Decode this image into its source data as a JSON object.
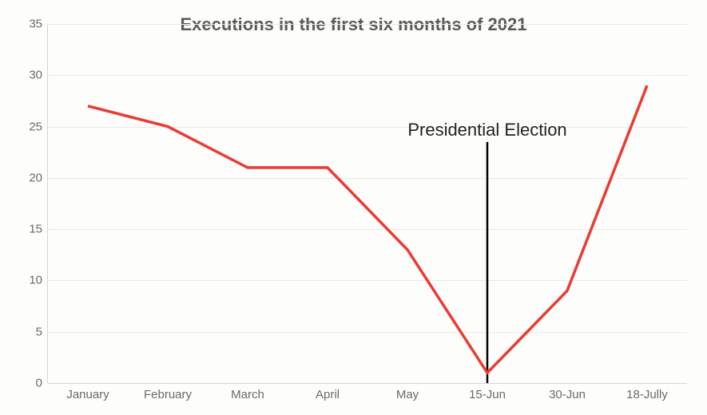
{
  "chart": {
    "type": "line",
    "title": "Executions in the first six months of 2021",
    "title_fontsize": 22,
    "title_color": "#5a5a5a",
    "background_color": "#fdfdfb",
    "grid_color": "#e9e9e6",
    "axis_label_color": "#6a6a6a",
    "axis_label_fontsize": 15,
    "ylim": [
      0,
      35
    ],
    "ytick_step": 5,
    "yticks": [
      0,
      5,
      10,
      15,
      20,
      25,
      30,
      35
    ],
    "categories": [
      "January",
      "February",
      "March",
      "April",
      "May",
      "15-Jun",
      "30-Jun",
      "18-Jully"
    ],
    "values": [
      27,
      25,
      21,
      21,
      13,
      1,
      9,
      29
    ],
    "line_color": "#eb3a33",
    "line_width": 3.5,
    "annotation": {
      "text": "Presidential Election",
      "fontsize": 22,
      "text_color": "#222222",
      "x_category": "15-Jun",
      "line_color": "#000000",
      "line_width": 2.5,
      "line_y_from": 0,
      "line_y_to": 23.5
    }
  }
}
